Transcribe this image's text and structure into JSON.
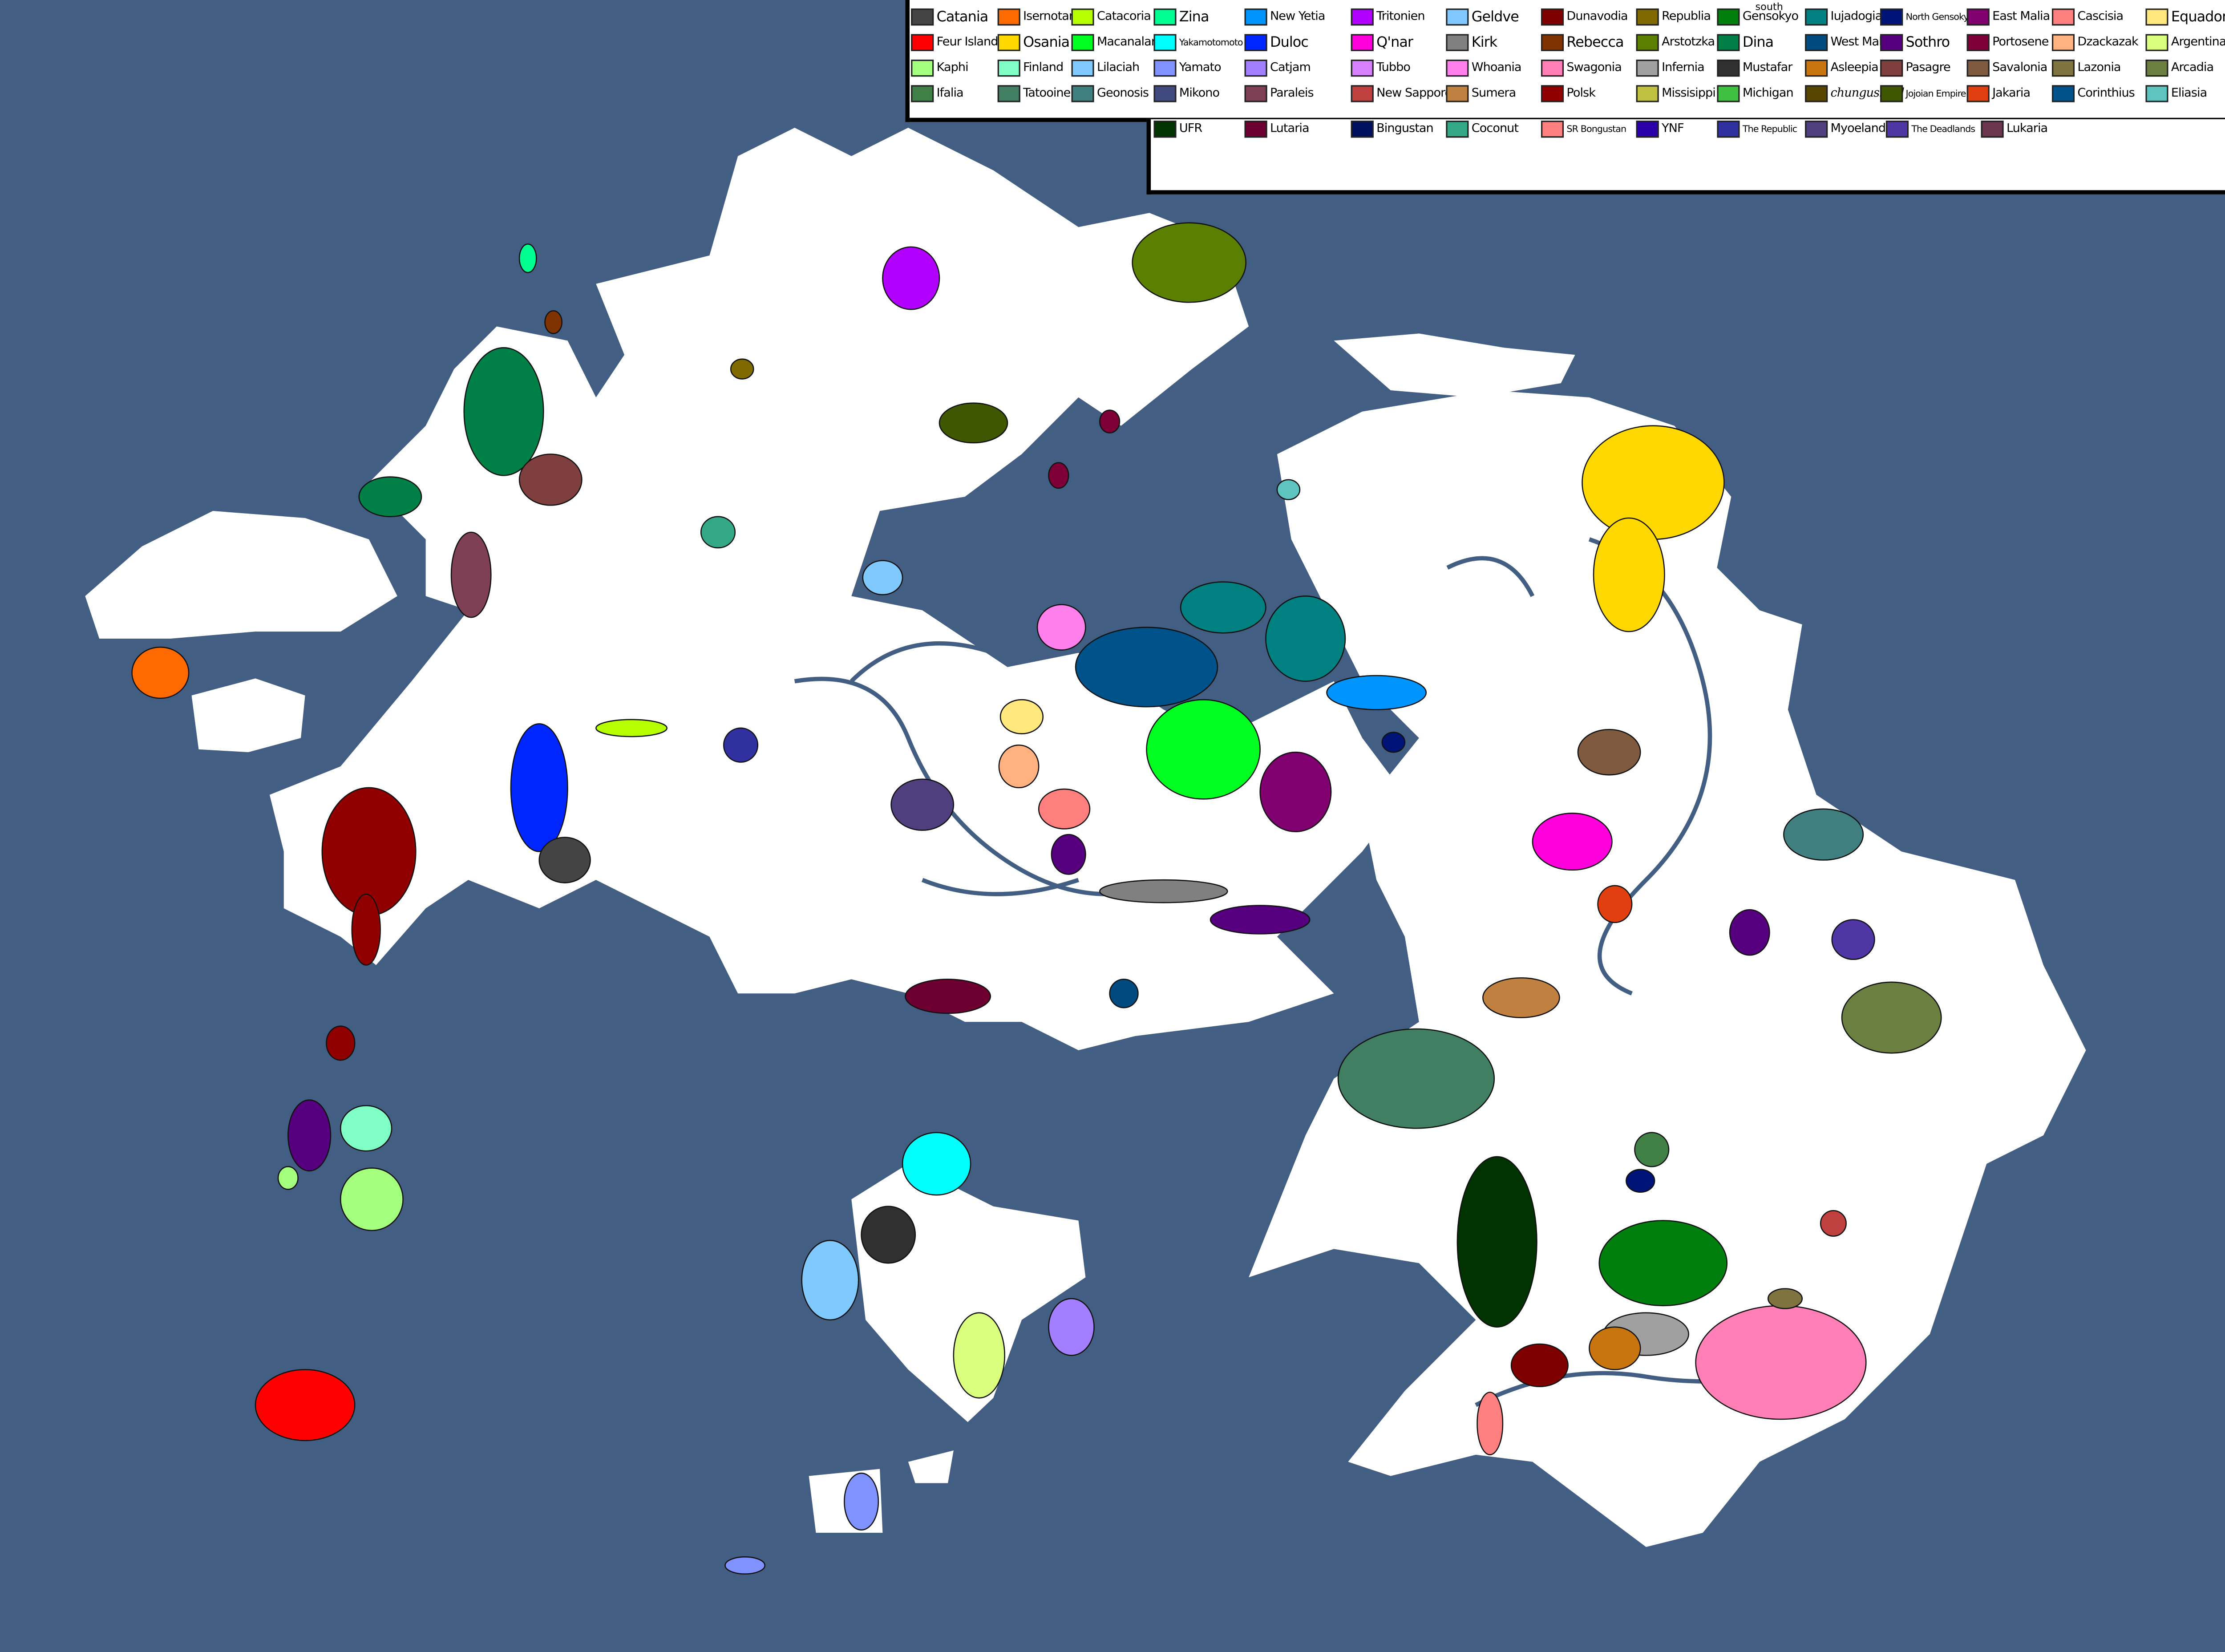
{
  "map": {
    "ocean_color": "#425e82",
    "land_color": "#ffffff"
  },
  "legend": {
    "note_south": "south",
    "rows": [
      [
        {
          "name": "Catania",
          "color": "#444444"
        },
        {
          "name": "Isernotaria",
          "color": "#ff6a00"
        },
        {
          "name": "Catacoria",
          "color": "#b6ff00"
        },
        {
          "name": "Zina",
          "color": "#00ff90"
        },
        {
          "name": "New Yetia",
          "color": "#0094ff"
        },
        {
          "name": "Tritonien",
          "color": "#b200ff"
        },
        {
          "name": "Geldve",
          "color": "#80c8ff"
        },
        {
          "name": "Dunavodia",
          "color": "#7f0000"
        },
        {
          "name": "Republia",
          "color": "#7f6a00"
        },
        {
          "name": "Gensokyo",
          "color": "#007f0e"
        },
        {
          "name": "Iujadogia",
          "color": "#008080"
        },
        {
          "name": "North Gensokyo",
          "color": "#001477"
        },
        {
          "name": "East Malia",
          "color": "#7f006e"
        },
        {
          "name": "Cascisia",
          "color": "#ff7f7f"
        },
        {
          "name": "Equador",
          "color": "#ffe97f"
        }
      ],
      [
        {
          "name": "Feur Island",
          "color": "#ff0000"
        },
        {
          "name": "Osania",
          "color": "#ffd800"
        },
        {
          "name": "Macanaland",
          "color": "#00ff21"
        },
        {
          "name": "Yakamotomoto",
          "color": "#00ffff"
        },
        {
          "name": "Duloc",
          "color": "#0026ff"
        },
        {
          "name": "Q'nar",
          "color": "#ff00dc"
        },
        {
          "name": "Kirk",
          "color": "#808080"
        },
        {
          "name": "Rebecca",
          "color": "#7f3300"
        },
        {
          "name": "Arstotzka",
          "color": "#5b7f00"
        },
        {
          "name": "Dina",
          "color": "#007f46"
        },
        {
          "name": "West Malia",
          "color": "#004a7f"
        },
        {
          "name": "Sothro",
          "color": "#57007f"
        },
        {
          "name": "Portosene",
          "color": "#7f0037"
        },
        {
          "name": "Dzackazak",
          "color": "#ffb27f"
        },
        {
          "name": "Argentina",
          "color": "#daff7f"
        }
      ],
      [
        {
          "name": "Kaphi",
          "color": "#a5ff7f"
        },
        {
          "name": "Finland",
          "color": "#7fffc5"
        },
        {
          "name": "Lilaciah",
          "color": "#7fc9ff"
        },
        {
          "name": "Yamato",
          "color": "#7f92ff"
        },
        {
          "name": "Catjam",
          "color": "#a17fff"
        },
        {
          "name": "Tubbo",
          "color": "#d67fff"
        },
        {
          "name": "Whoania",
          "color": "#ff7fed"
        },
        {
          "name": "Swagonia",
          "color": "#ff7fb6"
        },
        {
          "name": "Infernia",
          "color": "#a0a0a0"
        },
        {
          "name": "Mustafar",
          "color": "#303030"
        },
        {
          "name": "Asleepia",
          "color": "#c87510"
        },
        {
          "name": "Pasagre",
          "color": "#7f3f3f"
        },
        {
          "name": "Savalonia",
          "color": "#7f5a3f"
        },
        {
          "name": "Lazonia",
          "color": "#7f7340"
        },
        {
          "name": "Arcadia",
          "color": "#6a7f40"
        }
      ],
      [
        {
          "name": "Ifalia",
          "color": "#407f46"
        },
        {
          "name": "Tatooine",
          "color": "#407f62"
        },
        {
          "name": "Geonosis",
          "color": "#407f7f"
        },
        {
          "name": "Mikono",
          "color": "#404a7f"
        },
        {
          "name": "Paraleis",
          "color": "#7f4055"
        },
        {
          "name": "New Sapporo",
          "color": "#c04040"
        },
        {
          "name": "Sumera",
          "color": "#c08040"
        },
        {
          "name": "Polsk",
          "color": "#900000"
        },
        {
          "name": "Missisippi",
          "color": "#c0c040"
        },
        {
          "name": "Michigan",
          "color": "#40c040"
        },
        {
          "name": "chungusland",
          "color": "#574600"
        },
        {
          "name": "Jojoian Empire",
          "color": "#3f5700"
        },
        {
          "name": "Jakaria",
          "color": "#e04010"
        },
        {
          "name": "Corinthius",
          "color": "#00528a"
        },
        {
          "name": "Eliasia",
          "color": "#5ec4c0"
        }
      ],
      [
        {
          "name": "UFR",
          "color": "#003300"
        },
        {
          "name": "Lutaria",
          "color": "#6d0030"
        },
        {
          "name": "Bingustan",
          "color": "#001060"
        },
        {
          "name": "Coconut",
          "color": "#33a887"
        },
        {
          "name": "SR Bongustan",
          "color": "#ff8080"
        },
        {
          "name": "YNF",
          "color": "#2a00aa"
        },
        {
          "name": "The Republic",
          "color": "#3030a0"
        },
        {
          "name": "Myoeland",
          "color": "#4f3f7f"
        },
        {
          "name": "The Deadlands",
          "color": "#5035a5"
        },
        {
          "name": "Lukaria",
          "color": "#6b3550"
        }
      ]
    ]
  }
}
